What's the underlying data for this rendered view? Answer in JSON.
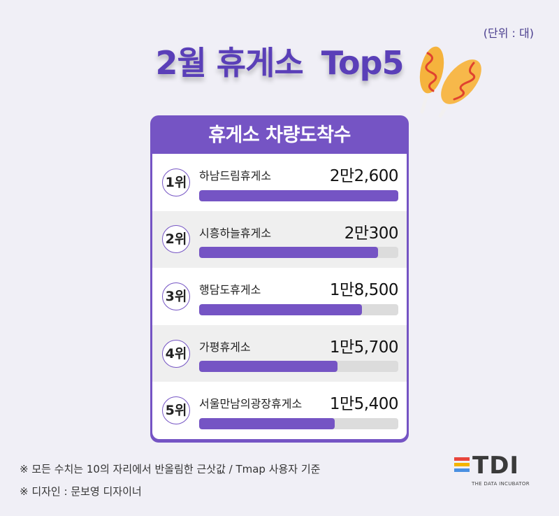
{
  "unit_note": "(단위 : 대)",
  "title": {
    "part1": "2월 휴게소",
    "part2": "Top5"
  },
  "card_title": "휴게소 차량도착수",
  "chart_data": {
    "type": "bar",
    "title": "휴게소 차량도착수",
    "categories": [
      "하남드림휴게소",
      "시흥하늘휴게소",
      "행담도휴게소",
      "가평휴게소",
      "서울만남의광장휴게소"
    ],
    "ranks": [
      "1위",
      "2위",
      "3위",
      "4위",
      "5위"
    ],
    "value_labels": [
      "2만2,600",
      "2만300",
      "1만8,500",
      "1만5,700",
      "1만5,400"
    ],
    "values": [
      22600,
      20300,
      18500,
      15700,
      15400
    ],
    "xlim": [
      0,
      22600
    ],
    "grid": false,
    "bar_color": "#7554c4",
    "track_color": "#dcdcdc"
  },
  "notes": [
    "※ 모든 수치는 10의 자리에서 반올림한 근삿값 / Tmap 사용자 기준",
    "※ 디자인 : 문보영 디자이너"
  ],
  "logo": {
    "text": "TDI",
    "subtitle": "THE DATA INCUBATOR",
    "bar_colors": [
      "#e8453c",
      "#f4b400",
      "#4a90e2"
    ]
  },
  "icons": [
    "corndog-icon"
  ]
}
